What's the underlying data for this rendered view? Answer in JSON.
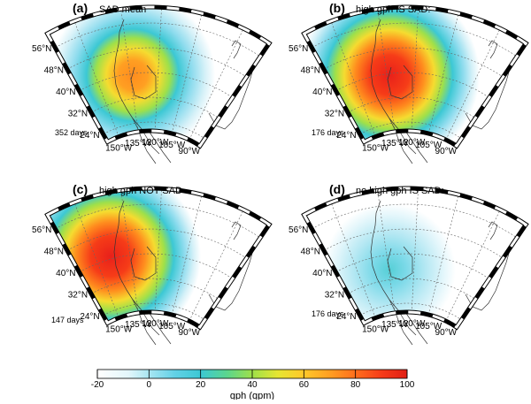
{
  "panels": [
    {
      "letter": "(a)",
      "title": "SAD mean",
      "days": "352 days",
      "intensity": 0.78
    },
    {
      "letter": "(b)",
      "title": "high gph IS SAD:",
      "days": "176 days",
      "intensity": 1.0
    },
    {
      "letter": "(c)",
      "title": "high gph NOT SAD",
      "days": "147 days",
      "intensity": 1.0
    },
    {
      "letter": "(d)",
      "title": "no high gph IS SAD:",
      "days": "176 days",
      "intensity": 0.32
    }
  ],
  "lat_labels": [
    "56°N",
    "48°N",
    "40°N",
    "32°N",
    "24°N"
  ],
  "lon_labels": [
    "150°W",
    "135°W",
    "120°W",
    "105°W",
    "90°W"
  ],
  "colorbar": {
    "ticks": [
      "-20",
      "0",
      "20",
      "40",
      "60",
      "80",
      "100"
    ],
    "label": "gph (gpm)",
    "min": -20,
    "max": 100
  }
}
